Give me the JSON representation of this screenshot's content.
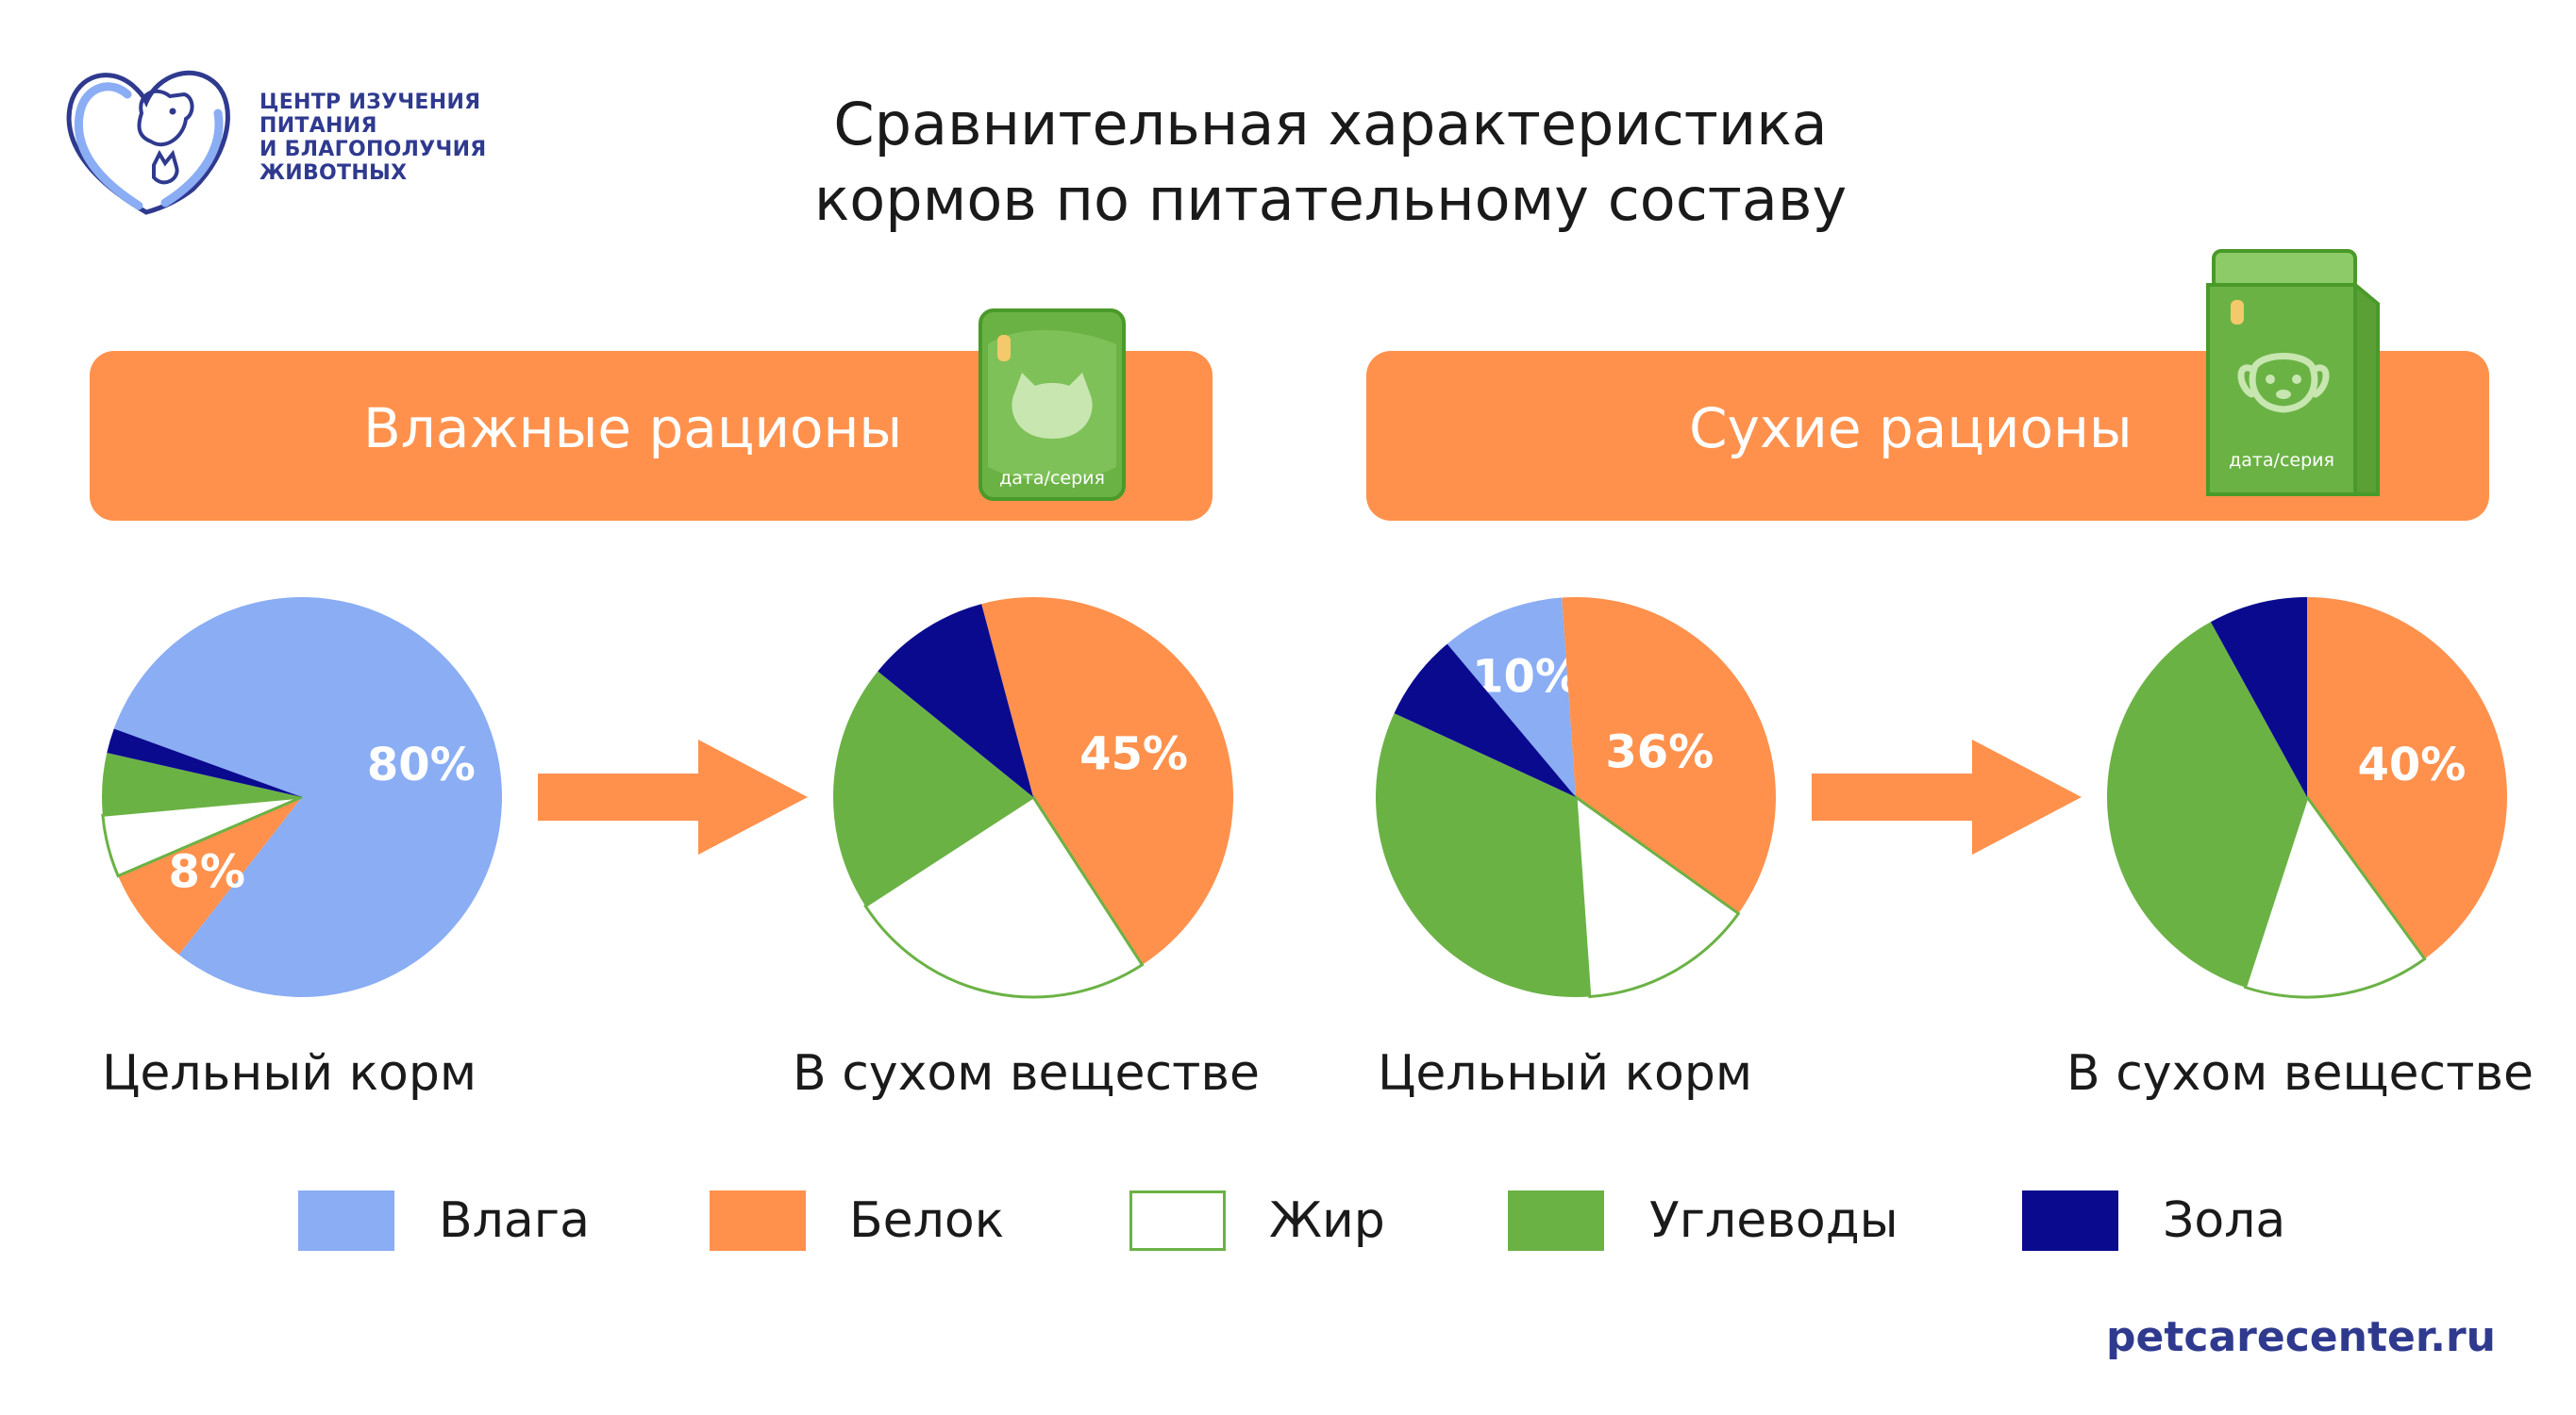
{
  "header": {
    "logo_lines": [
      "ЦЕНТР ИЗУЧЕНИЯ",
      "ПИТАНИЯ",
      "И БЛАГОПОЛУЧИЯ",
      "ЖИВОТНЫХ"
    ],
    "title_lines": [
      "Сравнительная характеристика",
      "кормов по питательному составу"
    ]
  },
  "sections": {
    "wet_label": "Влажные рационы",
    "dry_label": "Сухие рационы",
    "pack_text": "дата/серия"
  },
  "colors": {
    "moisture": "#8aadf4",
    "protein": "#ff914d",
    "fat": "#ffffff",
    "carbs": "#6bb245",
    "ash": "#0a0a8f",
    "banner": "#ff914d",
    "brand": "#2f3a8f",
    "pack_green": "#6bb245"
  },
  "chart_data": [
    {
      "type": "pie",
      "id": "wet-whole",
      "label": "Цельный корм",
      "slices": [
        {
          "name": "Влага",
          "value": 80,
          "color_key": "moisture",
          "shown_label": "80%"
        },
        {
          "name": "Белок",
          "value": 8,
          "color_key": "protein",
          "shown_label": "8%"
        },
        {
          "name": "Жир",
          "value": 5,
          "color_key": "fat"
        },
        {
          "name": "Углеводы",
          "value": 5,
          "color_key": "carbs"
        },
        {
          "name": "Зола",
          "value": 2,
          "color_key": "ash"
        }
      ]
    },
    {
      "type": "pie",
      "id": "wet-dry",
      "label": "В сухом веществе",
      "slices": [
        {
          "name": "Влага",
          "value": 0,
          "color_key": "moisture"
        },
        {
          "name": "Белок",
          "value": 45,
          "color_key": "protein",
          "shown_label": "45%"
        },
        {
          "name": "Жир",
          "value": 25,
          "color_key": "fat"
        },
        {
          "name": "Углеводы",
          "value": 20,
          "color_key": "carbs"
        },
        {
          "name": "Зола",
          "value": 10,
          "color_key": "ash"
        }
      ]
    },
    {
      "type": "pie",
      "id": "dry-whole",
      "label": "Цельный корм",
      "slices": [
        {
          "name": "Влага",
          "value": 10,
          "color_key": "moisture",
          "shown_label": "10%"
        },
        {
          "name": "Белок",
          "value": 36,
          "color_key": "protein",
          "shown_label": "36%"
        },
        {
          "name": "Жир",
          "value": 14,
          "color_key": "fat"
        },
        {
          "name": "Углеводы",
          "value": 33,
          "color_key": "carbs"
        },
        {
          "name": "Зола",
          "value": 7,
          "color_key": "ash"
        }
      ]
    },
    {
      "type": "pie",
      "id": "dry-dry",
      "label": "В сухом веществе",
      "slices": [
        {
          "name": "Влага",
          "value": 0,
          "color_key": "moisture"
        },
        {
          "name": "Белок",
          "value": 40,
          "color_key": "protein",
          "shown_label": "40%"
        },
        {
          "name": "Жир",
          "value": 15,
          "color_key": "fat"
        },
        {
          "name": "Углеводы",
          "value": 37,
          "color_key": "carbs"
        },
        {
          "name": "Зола",
          "value": 8,
          "color_key": "ash"
        }
      ]
    }
  ],
  "legend": [
    {
      "label": "Влага",
      "color_key": "moisture"
    },
    {
      "label": "Белок",
      "color_key": "protein"
    },
    {
      "label": "Жир",
      "color_key": "fat"
    },
    {
      "label": "Углеводы",
      "color_key": "carbs"
    },
    {
      "label": "Зола",
      "color_key": "ash"
    }
  ],
  "footer": {
    "site": "petcarecenter.ru"
  }
}
